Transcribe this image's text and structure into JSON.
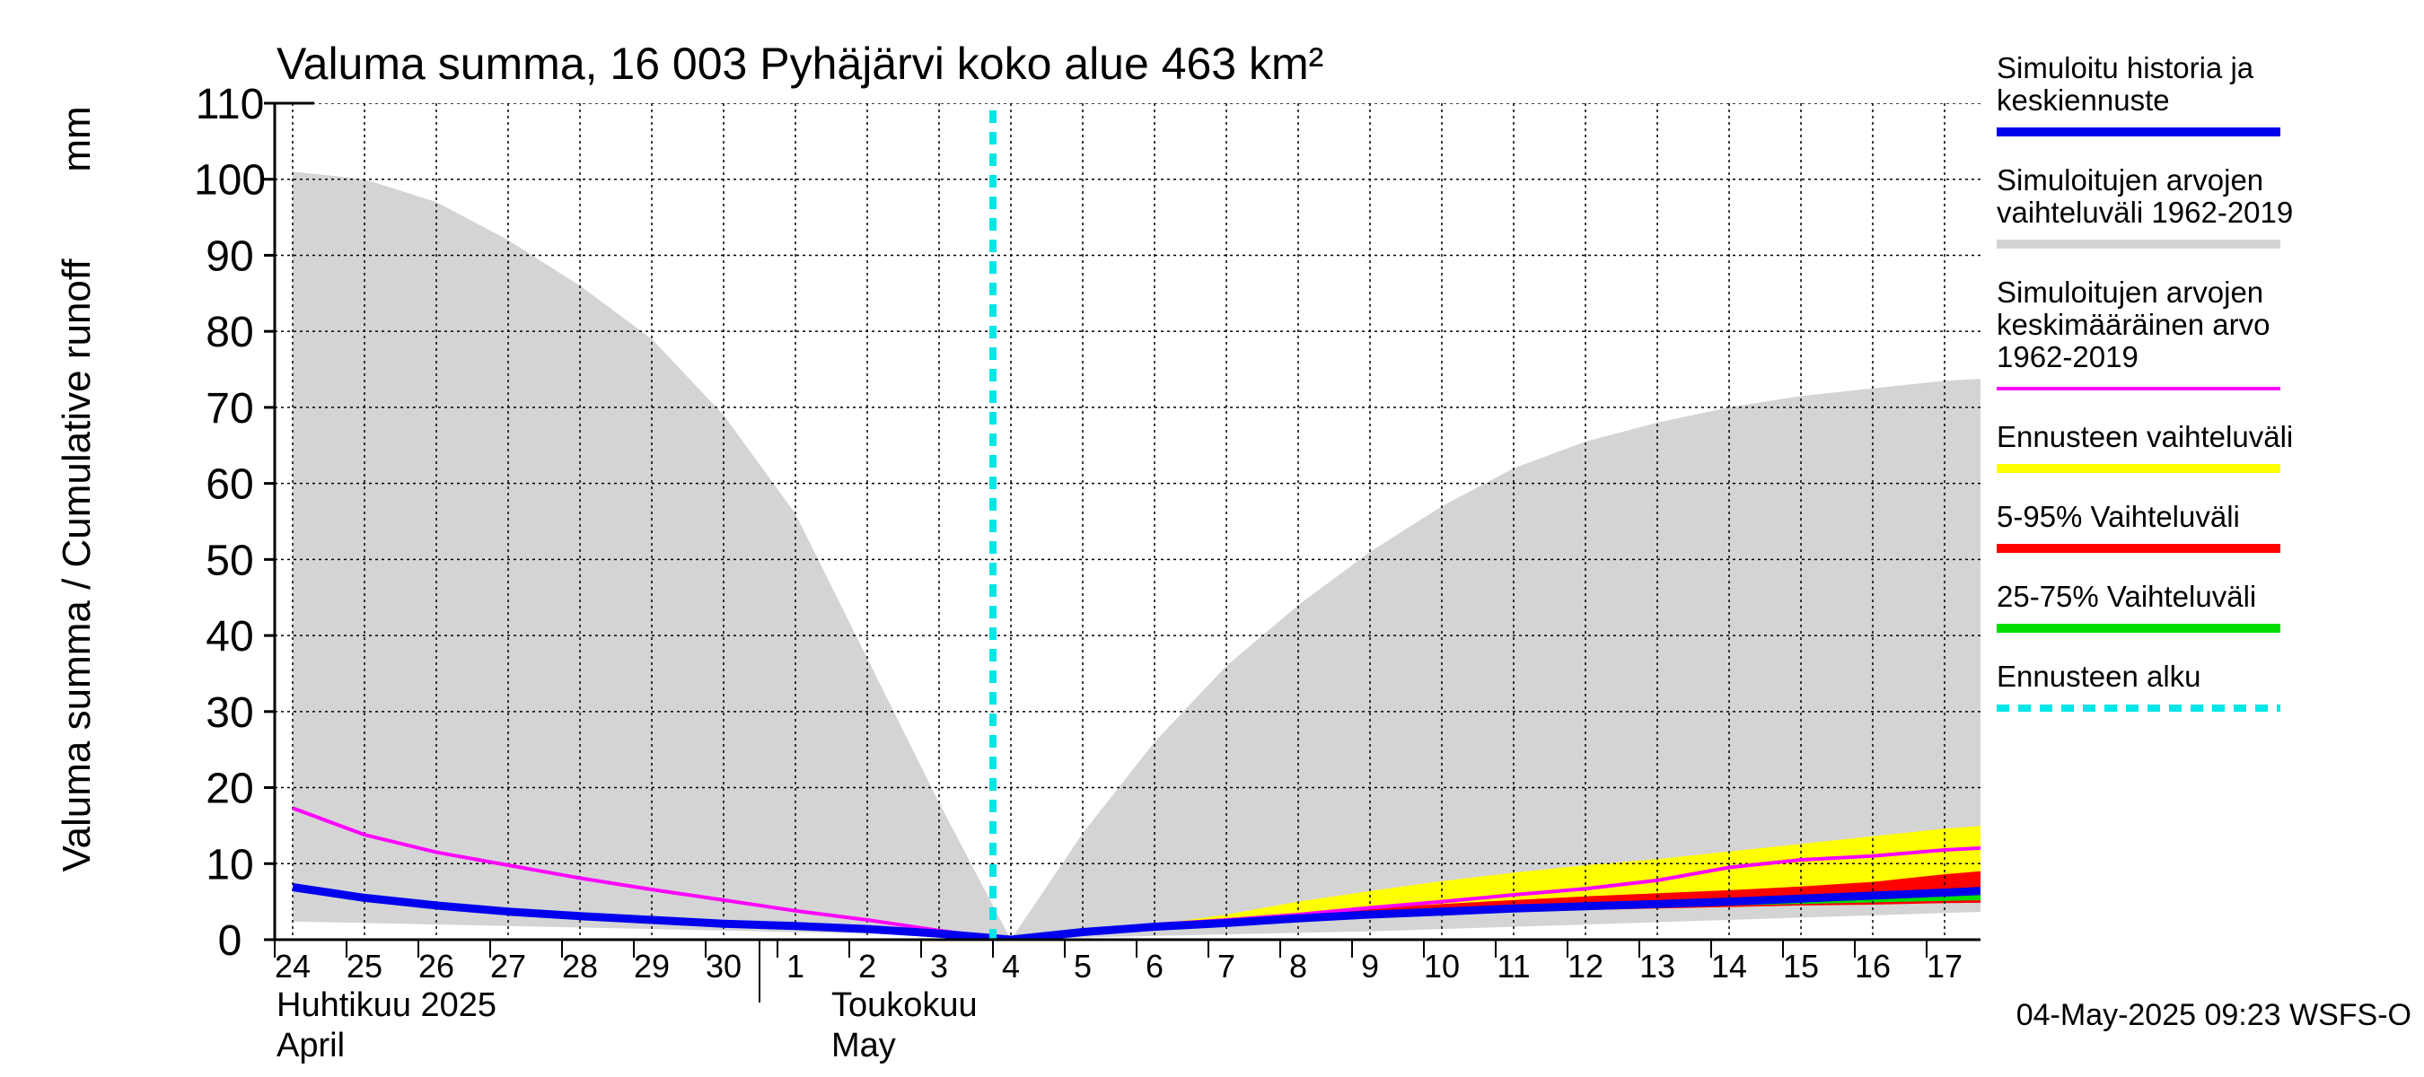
{
  "chart_data": {
    "type": "area",
    "title": "Valuma summa, 16 003 Pyhäjärvi koko alue 463 km²",
    "ylabel": "Valuma summa / Cumulative runoff",
    "yunit": "mm",
    "ylim": [
      0,
      110
    ],
    "yticks": [
      0,
      10,
      20,
      30,
      40,
      50,
      60,
      70,
      80,
      90,
      100,
      110
    ],
    "grid": true,
    "legend_position": "right",
    "x_start": "2025-04-24",
    "x_end": "2025-05-17",
    "xticks": [
      "24",
      "25",
      "26",
      "27",
      "28",
      "29",
      "30",
      "1",
      "2",
      "3",
      "4",
      "5",
      "6",
      "7",
      "8",
      "9",
      "10",
      "11",
      "12",
      "13",
      "14",
      "15",
      "16",
      "17"
    ],
    "month_labels": [
      {
        "fi": "Huhtikuu  2025",
        "en": "April"
      },
      {
        "fi": "Toukokuu",
        "en": "May"
      }
    ],
    "forecast_start": "2025-05-04",
    "dates": [
      "2025-04-24",
      "2025-04-25",
      "2025-04-26",
      "2025-04-27",
      "2025-04-28",
      "2025-04-29",
      "2025-04-30",
      "2025-05-01",
      "2025-05-02",
      "2025-05-03",
      "2025-05-04",
      "2025-05-05",
      "2025-05-06",
      "2025-05-07",
      "2025-05-08",
      "2025-05-09",
      "2025-05-10",
      "2025-05-11",
      "2025-05-12",
      "2025-05-13",
      "2025-05-14",
      "2025-05-15",
      "2025-05-16",
      "2025-05-17",
      "2025-05-18"
    ],
    "series": [
      {
        "key": "range_hist",
        "name": "Simuloitujen arvojen vaihteluväli 1962-2019",
        "color": "#d4d4d4",
        "low": [
          2.4,
          2.2,
          2.0,
          1.8,
          1.6,
          1.4,
          1.2,
          1.0,
          0.8,
          0.5,
          0.0,
          0.3,
          0.5,
          0.7,
          0.9,
          1.1,
          1.4,
          1.7,
          2.0,
          2.3,
          2.6,
          2.9,
          3.2,
          3.5,
          3.8
        ],
        "high": [
          101,
          100,
          97,
          92,
          86,
          79,
          69,
          56,
          37,
          18,
          0,
          14,
          26,
          36,
          44,
          51,
          57,
          62,
          65.5,
          68,
          70,
          71.5,
          72.5,
          73.5,
          74
        ]
      },
      {
        "key": "forecast_range",
        "name": "Ennusteen vaihteluväli",
        "color": "#ffff00",
        "low": [
          null,
          null,
          null,
          null,
          null,
          null,
          null,
          null,
          null,
          null,
          0.0,
          0.7,
          1.4,
          2.1,
          2.7,
          3.0,
          3.3,
          3.6,
          3.9,
          4.1,
          4.3,
          4.5,
          4.7,
          4.9,
          5.0
        ],
        "high": [
          null,
          null,
          null,
          null,
          null,
          null,
          null,
          null,
          null,
          null,
          0.0,
          1.2,
          2.0,
          3.3,
          5.0,
          6.4,
          7.7,
          8.8,
          9.8,
          10.6,
          11.6,
          12.6,
          13.6,
          14.6,
          15.3
        ]
      },
      {
        "key": "p5_95",
        "name": "5-95% Vaihteluväli",
        "color": "#ff0000",
        "low": [
          null,
          null,
          null,
          null,
          null,
          null,
          null,
          null,
          null,
          null,
          0.0,
          0.8,
          1.5,
          2.2,
          2.8,
          3.1,
          3.4,
          3.7,
          3.9,
          4.1,
          4.3,
          4.5,
          4.6,
          4.8,
          4.9
        ],
        "high": [
          null,
          null,
          null,
          null,
          null,
          null,
          null,
          null,
          null,
          null,
          0.0,
          1.1,
          1.8,
          2.6,
          3.4,
          4.1,
          4.7,
          5.2,
          5.7,
          6.1,
          6.5,
          7.0,
          7.6,
          8.6,
          9.4
        ]
      },
      {
        "key": "p25_75",
        "name": "25-75% Vaihteluväli",
        "color": "#00dd00",
        "low": [
          null,
          null,
          null,
          null,
          null,
          null,
          null,
          null,
          null,
          null,
          0.0,
          0.9,
          1.6,
          2.3,
          2.9,
          3.3,
          3.6,
          3.9,
          4.1,
          4.3,
          4.5,
          4.7,
          4.9,
          5.1,
          5.3
        ],
        "high": [
          null,
          null,
          null,
          null,
          null,
          null,
          null,
          null,
          null,
          null,
          0.0,
          1.0,
          1.8,
          2.5,
          3.2,
          3.7,
          4.1,
          4.5,
          4.8,
          5.1,
          5.4,
          5.8,
          6.1,
          6.4,
          6.8
        ]
      },
      {
        "key": "mean_hist",
        "name": "Simuloitujen arvojen keskimääräinen arvo 1962-2019",
        "color": "#ff00ff",
        "values": [
          17.3,
          13.8,
          11.5,
          9.8,
          8.1,
          6.6,
          5.2,
          3.8,
          2.6,
          1.2,
          0.0,
          1.1,
          2.0,
          2.6,
          3.3,
          4.2,
          5.0,
          5.9,
          6.7,
          7.8,
          9.5,
          10.5,
          11.0,
          11.8,
          12.3
        ]
      },
      {
        "key": "sim_history",
        "name": "Simuloitu historia ja keskiennuste",
        "color": "#0000ee",
        "values": [
          6.9,
          5.5,
          4.5,
          3.7,
          3.1,
          2.6,
          2.1,
          1.8,
          1.4,
          0.8,
          0.0,
          1.0,
          1.7,
          2.2,
          2.8,
          3.3,
          3.7,
          4.1,
          4.4,
          4.7,
          5.0,
          5.4,
          5.8,
          6.2,
          6.6
        ]
      }
    ]
  },
  "legend": [
    {
      "key": "sim_history",
      "lines": [
        "Simuloitu historia ja",
        "keskiennuste"
      ],
      "color": "#0000ee",
      "style": "solid"
    },
    {
      "key": "range_hist",
      "lines": [
        "Simuloitujen arvojen",
        "vaihteluväli 1962-2019"
      ],
      "color": "#d4d4d4",
      "style": "solid"
    },
    {
      "key": "mean_hist",
      "lines": [
        "Simuloitujen arvojen",
        "keskimääräinen arvo",
        "   1962-2019"
      ],
      "color": "#ff00ff",
      "style": "thin"
    },
    {
      "key": "forecast_range",
      "lines": [
        "Ennusteen vaihteluväli"
      ],
      "color": "#ffff00",
      "style": "solid"
    },
    {
      "key": "p5_95",
      "lines": [
        "5-95% Vaihteluväli"
      ],
      "color": "#ff0000",
      "style": "solid"
    },
    {
      "key": "p25_75",
      "lines": [
        "25-75% Vaihteluväli"
      ],
      "color": "#00dd00",
      "style": "solid"
    },
    {
      "key": "forecast_start",
      "lines": [
        "Ennusteen alku"
      ],
      "color": "#00e5e5",
      "style": "dashed"
    }
  ],
  "footer": {
    "timestamp": "04-May-2025 09:23 WSFS-O"
  }
}
